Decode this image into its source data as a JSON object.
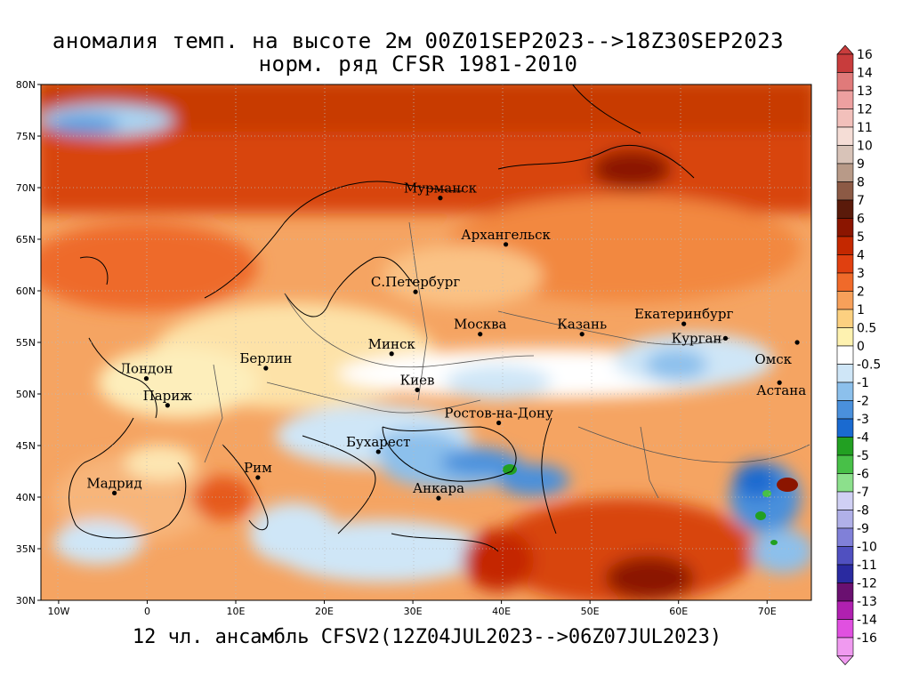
{
  "title": {
    "line1": "аномалия темп. на высоте 2м 00Z01SEP2023-->18Z30SEP2023",
    "line2": "норм. ряд CFSR 1981-2010"
  },
  "footer": "12 чл. ансамбль CFSV2(12Z04JUL2023-->06Z07JUL2023)",
  "map": {
    "lon_range": [
      -12,
      75
    ],
    "lat_range": [
      30,
      80
    ],
    "lon_ticks": [
      "10W",
      "0",
      "10E",
      "20E",
      "30E",
      "40E",
      "50E",
      "60E",
      "70E"
    ],
    "lat_ticks": [
      "80N",
      "75N",
      "70N",
      "65N",
      "60N",
      "55N",
      "50N",
      "45N",
      "40N",
      "35N",
      "30N"
    ],
    "grid": "dotted",
    "cities": [
      {
        "name": "Мурманск",
        "lon": 33.1,
        "lat": 69.0
      },
      {
        "name": "Архангельск",
        "lon": 40.5,
        "lat": 64.5
      },
      {
        "name": "С.Петербург",
        "lon": 30.3,
        "lat": 59.9
      },
      {
        "name": "Москва",
        "lon": 37.6,
        "lat": 55.8
      },
      {
        "name": "Казань",
        "lon": 49.1,
        "lat": 55.8
      },
      {
        "name": "Екатеринбург",
        "lon": 60.6,
        "lat": 56.8
      },
      {
        "name": "Курган",
        "lon": 65.3,
        "lat": 55.4
      },
      {
        "name": "Омск",
        "lon": 73.4,
        "lat": 55.0
      },
      {
        "name": "Минск",
        "lon": 27.6,
        "lat": 53.9
      },
      {
        "name": "Лондон",
        "lon": -0.1,
        "lat": 51.5
      },
      {
        "name": "Берлин",
        "lon": 13.4,
        "lat": 52.5
      },
      {
        "name": "Киев",
        "lon": 30.5,
        "lat": 50.4
      },
      {
        "name": "Астана",
        "lon": 71.4,
        "lat": 51.1
      },
      {
        "name": "Париж",
        "lon": 2.3,
        "lat": 48.9
      },
      {
        "name": "Ростов-на-Дону",
        "lon": 39.7,
        "lat": 47.2
      },
      {
        "name": "Бухарест",
        "lon": 26.1,
        "lat": 44.4
      },
      {
        "name": "Рим",
        "lon": 12.5,
        "lat": 41.9
      },
      {
        "name": "Мадрид",
        "lon": -3.7,
        "lat": 40.4
      },
      {
        "name": "Анкара",
        "lon": 32.9,
        "lat": 39.9
      }
    ]
  },
  "colorbar": {
    "labels": [
      "16",
      "14",
      "13",
      "12",
      "11",
      "10",
      "9",
      "8",
      "7",
      "6",
      "5",
      "4",
      "3",
      "2",
      "1",
      "0.5",
      "0",
      "-0.5",
      "-1",
      "-2",
      "-3",
      "-4",
      "-5",
      "-6",
      "-7",
      "-8",
      "-9",
      "-10",
      "-11",
      "-12",
      "-13",
      "-14",
      "-16"
    ],
    "colors": [
      "#c83c3c",
      "#e07a7a",
      "#eda0a0",
      "#f2c0bb",
      "#f5ddd6",
      "#d8c3b8",
      "#b89a88",
      "#8c5a45",
      "#5a1a0a",
      "#8b1500",
      "#c42800",
      "#e04010",
      "#f06a2a",
      "#f7a05a",
      "#fcd080",
      "#fef2b0",
      "#ffffff",
      "#cfe6f7",
      "#8cc0ec",
      "#4a90dc",
      "#1a6ad0",
      "#22a022",
      "#48c048",
      "#8ce08c",
      "#d0d0f4",
      "#b0b0e8",
      "#8080d8",
      "#5050c0",
      "#2a2aa0",
      "#6a1070",
      "#b020b0",
      "#e050e0",
      "#f09af0"
    ]
  }
}
